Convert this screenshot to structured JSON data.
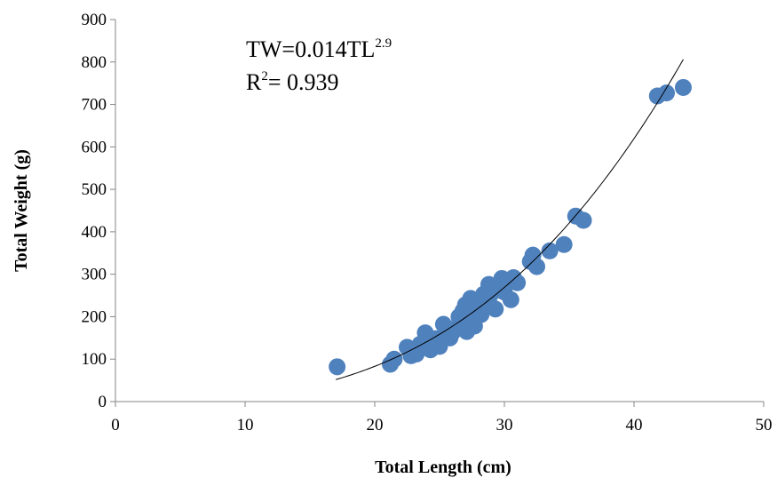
{
  "chart_data": {
    "type": "scatter",
    "xlabel": "Total Length (cm)",
    "ylabel": "Total Weight (g)",
    "xlim": [
      0,
      50
    ],
    "ylim": [
      0,
      900
    ],
    "xticks": [
      "0",
      "10",
      "20",
      "30",
      "40",
      "50"
    ],
    "yticks": [
      "0",
      "100",
      "200",
      "300",
      "400",
      "500",
      "600",
      "700",
      "800",
      "900"
    ],
    "grid": false,
    "legend": "none",
    "annotations": {
      "equation_prefix": "TW=0.014TL",
      "equation_exponent": "2.9",
      "r2_prefix": "R",
      "r2_sup": "2",
      "r2_suffix": "= 0.939"
    },
    "trendline": {
      "type": "power",
      "coefficient": 0.014,
      "exponent": 2.9,
      "x_range": [
        17,
        43.8
      ]
    },
    "marker_color": "#4f81bd",
    "series": [
      {
        "x": [
          17.1,
          21.2,
          21.5,
          22.5,
          22.8,
          23.2,
          23.5,
          23.9,
          24.0,
          24.3,
          24.7,
          25.0,
          25.3,
          25.5,
          25.8,
          26.0,
          26.2,
          26.5,
          26.8,
          27.0,
          27.1,
          27.3,
          27.4,
          27.6,
          27.7,
          27.9,
          28.2,
          28.4,
          28.6,
          28.8,
          28.9,
          29.1,
          29.3,
          29.5,
          29.8,
          30.0,
          30.2,
          30.5,
          30.7,
          31.0,
          32.0,
          32.2,
          32.5,
          33.5,
          34.6,
          35.5,
          36.1,
          41.8,
          42.5,
          43.8
        ],
        "y": [
          82,
          88,
          100,
          128,
          108,
          112,
          135,
          162,
          140,
          122,
          148,
          130,
          182,
          158,
          150,
          163,
          172,
          200,
          213,
          228,
          165,
          190,
          243,
          210,
          178,
          223,
          205,
          253,
          238,
          276,
          228,
          258,
          218,
          270,
          290,
          258,
          280,
          240,
          292,
          280,
          330,
          345,
          318,
          355,
          370,
          437,
          427,
          720,
          727,
          740
        ]
      }
    ]
  }
}
